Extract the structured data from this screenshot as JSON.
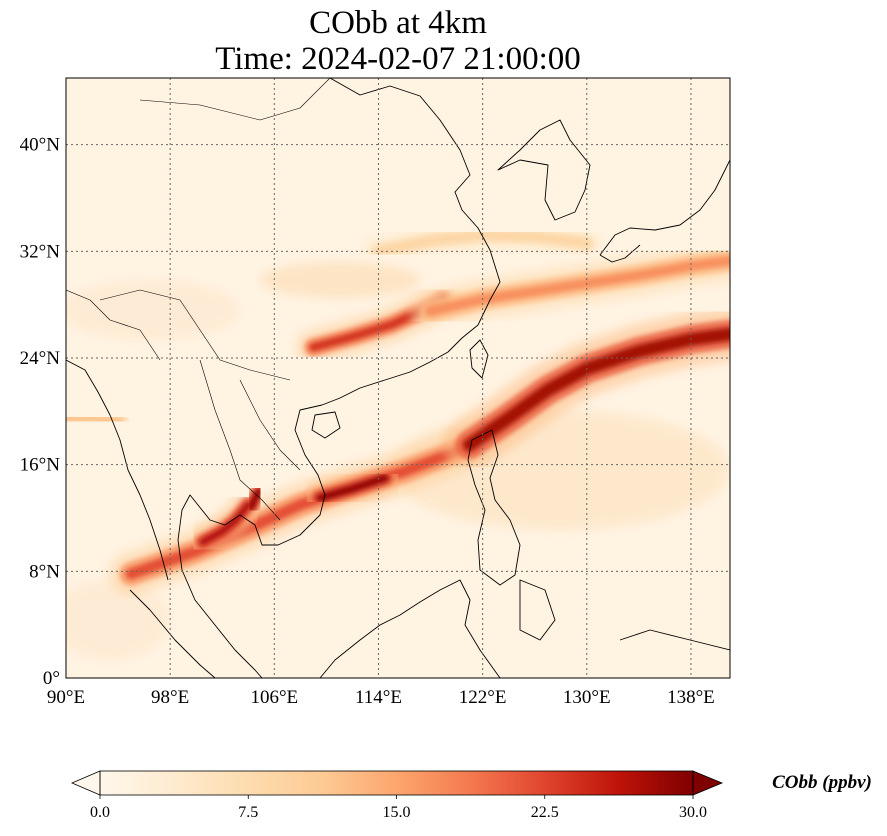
{
  "title": {
    "line1": "CObb at 4km",
    "line2": "Time: 2024-02-07 21:00:00"
  },
  "chart_data": {
    "type": "heatmap",
    "variable": "CObb",
    "level": "4km",
    "time": "2024-02-07 21:00:00",
    "projection": "PlateCarree",
    "lon_range": [
      90,
      141
    ],
    "lat_range": [
      0,
      45
    ],
    "grid": true,
    "lon_ticks": [
      {
        "value": 90,
        "label": "90°E"
      },
      {
        "value": 98,
        "label": "98°E"
      },
      {
        "value": 106,
        "label": "106°E"
      },
      {
        "value": 114,
        "label": "114°E"
      },
      {
        "value": 122,
        "label": "122°E"
      },
      {
        "value": 130,
        "label": "130°E"
      },
      {
        "value": 138,
        "label": "138°E"
      }
    ],
    "lat_ticks": [
      {
        "value": 0,
        "label": "0°"
      },
      {
        "value": 8,
        "label": "8°N"
      },
      {
        "value": 16,
        "label": "16°N"
      },
      {
        "value": 24,
        "label": "24°N"
      },
      {
        "value": 32,
        "label": "32°N"
      },
      {
        "value": 40,
        "label": "40°N"
      }
    ],
    "colorbar": {
      "label": "CObb (ppbv)",
      "colormap": "OrRd",
      "vmin": 0,
      "vmax": 30,
      "extend": "both",
      "ticks": [
        {
          "value": 0,
          "label": "0.0"
        },
        {
          "value": 7.5,
          "label": "7.5"
        },
        {
          "value": 15,
          "label": "15.0"
        },
        {
          "value": 22.5,
          "label": "22.5"
        },
        {
          "value": 30,
          "label": "30.0"
        }
      ]
    },
    "plumes": [
      {
        "name": "southeast-asia-to-pacific-band",
        "lon": [
          95,
          100,
          104,
          108,
          112,
          116,
          120
        ],
        "lat": [
          7.8,
          9.5,
          11.2,
          13.0,
          14.3,
          15.5,
          17.0
        ],
        "value": 22,
        "width_deg": 1.4
      },
      {
        "name": "philippine-sea-plume",
        "lon": [
          121,
          124,
          127,
          130,
          134,
          138,
          141
        ],
        "lat": [
          17.5,
          19.5,
          21.6,
          23.2,
          24.5,
          25.4,
          25.8
        ],
        "value": 28,
        "width_deg": 1.7
      },
      {
        "name": "south-china-plume",
        "lon": [
          109,
          112,
          115,
          117,
          119
        ],
        "lat": [
          24.8,
          25.6,
          26.5,
          27.4,
          28.4
        ],
        "value": 24,
        "width_deg": 1.1
      },
      {
        "name": "east-china-sea-band",
        "lon": [
          118,
          122,
          126,
          130,
          134,
          138,
          141
        ],
        "lat": [
          27.5,
          28.4,
          29.0,
          29.6,
          30.2,
          30.9,
          31.3
        ],
        "value": 17,
        "width_deg": 1.3
      },
      {
        "name": "yangtze-band",
        "lon": [
          114,
          118,
          122,
          126,
          130
        ],
        "lat": [
          32.0,
          32.8,
          33.2,
          33.1,
          32.6
        ],
        "value": 9,
        "width_deg": 1.0
      },
      {
        "name": "thailand-indochina-hotspot",
        "lon": [
          100.5,
          102,
          103,
          104
        ],
        "lat": [
          10.2,
          11.0,
          11.8,
          13.0
        ],
        "value": 27,
        "width_deg": 1.0
      },
      {
        "name": "cambodia-hotspot",
        "lon": [
          104.2,
          104.8
        ],
        "lat": [
          12.8,
          14.0
        ],
        "value": 29,
        "width_deg": 0.9
      },
      {
        "name": "south-china-sea-hotspot",
        "lon": [
          109.5,
          112,
          114.5
        ],
        "lat": [
          13.5,
          14.2,
          15.0
        ],
        "value": 29,
        "width_deg": 1.0
      },
      {
        "name": "bay-of-bengal-plume",
        "lon": [
          90,
          92,
          94
        ],
        "lat": [
          19.5,
          19.5,
          19.3
        ],
        "value": 12,
        "width_deg": 1.0
      }
    ]
  }
}
